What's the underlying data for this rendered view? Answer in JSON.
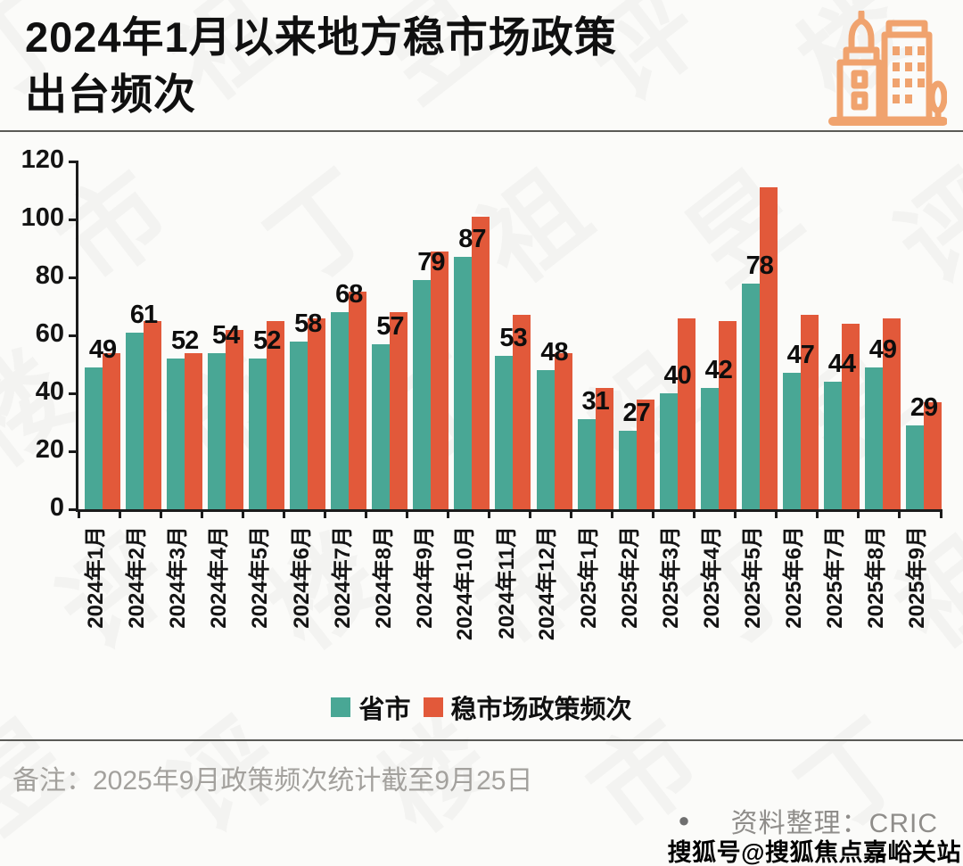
{
  "header": {
    "title_line1": "2024年1月以来地方稳市场政策",
    "title_line2": "出台频次",
    "icon": "city-buildings-icon",
    "icon_color": "#f0a36e"
  },
  "chart_data": {
    "type": "bar",
    "title": "2024年1月以来地方稳市场政策出台频次",
    "categories": [
      "2024年1月",
      "2024年2月",
      "2024年3月",
      "2024年4月",
      "2024年5月",
      "2024年6月",
      "2024年7月",
      "2024年8月",
      "2024年9月",
      "2024年10月",
      "2024年11月",
      "2024年12月",
      "2025年1月",
      "2025年2月",
      "2025年3月",
      "2025年4月",
      "2025年5月",
      "2025年6月",
      "2025年7月",
      "2025年8月",
      "2025年9月"
    ],
    "series": [
      {
        "name": "省市",
        "color": "#49a795",
        "values": [
          49,
          61,
          52,
          54,
          52,
          58,
          68,
          57,
          79,
          87,
          53,
          48,
          31,
          27,
          40,
          42,
          78,
          47,
          44,
          49,
          29
        ],
        "data_labels": true
      },
      {
        "name": "稳市场政策频次",
        "color": "#e2593a",
        "values": [
          54,
          65,
          54,
          62,
          65,
          66,
          75,
          68,
          89,
          101,
          67,
          54,
          42,
          38,
          66,
          65,
          111,
          67,
          64,
          66,
          37
        ],
        "data_labels": false
      }
    ],
    "ylim": [
      0,
      120
    ],
    "yticks": [
      0,
      20,
      40,
      60,
      80,
      100,
      120
    ],
    "grid": false,
    "legend_position": "bottom",
    "xlabel": "",
    "ylabel": ""
  },
  "footer": {
    "note": "备注：2025年9月政策频次统计截至9月25日",
    "source_bullet": "●",
    "source_text": "资料整理：CRIC",
    "sohu_watermark": "搜狐号@搜狐焦点嘉峪关站"
  },
  "watermark": {
    "text": "丁祖昱评楼市"
  }
}
